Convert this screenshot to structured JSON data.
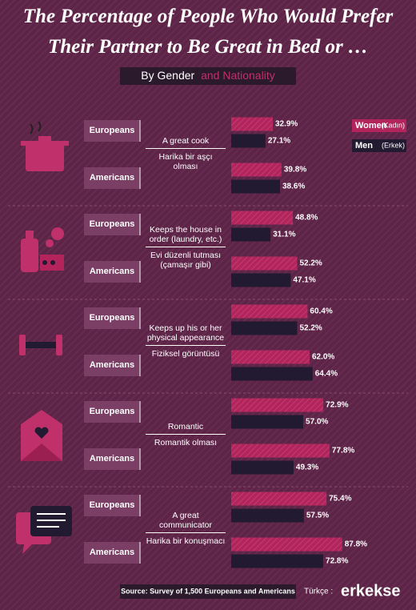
{
  "chart_data": {
    "type": "bar",
    "orientation": "horizontal",
    "title": "The Percentage of People Who Would Prefer Their Partner to Be Great in Bed or …",
    "subtitle_parts": [
      "By Gender",
      "and Nationality"
    ],
    "series": [
      {
        "name": "Women",
        "name_tr": "(Kadın)",
        "color": "#b3245d"
      },
      {
        "name": "Men",
        "name_tr": "(Erkek)",
        "color": "#211a30"
      }
    ],
    "xlim": [
      0,
      100
    ],
    "groups": [
      {
        "label_en": "A great cook",
        "label_tr": "Harika bir aşçı olması",
        "rows": [
          {
            "name": "Europeans",
            "values": [
              32.9,
              27.1
            ],
            "value_labels": [
              "32.9%",
              "27.1%"
            ]
          },
          {
            "name": "Americans",
            "values": [
              39.8,
              38.6
            ],
            "value_labels": [
              "39.8%",
              "38.6%"
            ]
          }
        ]
      },
      {
        "label_en": "Keeps the house in order (laundry, etc.)",
        "label_tr": "Evi düzenli tutması (çamaşır gibi)",
        "rows": [
          {
            "name": "Europeans",
            "values": [
              48.8,
              31.1
            ],
            "value_labels": [
              "48.8%",
              "31.1%"
            ]
          },
          {
            "name": "Americans",
            "values": [
              52.2,
              47.1
            ],
            "value_labels": [
              "52.2%",
              "47.1%"
            ]
          }
        ]
      },
      {
        "label_en": "Keeps up his or her physical appearance",
        "label_tr": "Fiziksel görüntüsü",
        "rows": [
          {
            "name": "Europeans",
            "values": [
              60.4,
              52.2
            ],
            "value_labels": [
              "60.4%",
              "52.2%"
            ]
          },
          {
            "name": "Americans",
            "values": [
              62.0,
              64.4
            ],
            "value_labels": [
              "62.0%",
              "64.4%"
            ]
          }
        ]
      },
      {
        "label_en": "Romantic",
        "label_tr": "Romantik olması",
        "rows": [
          {
            "name": "Europeans",
            "values": [
              72.9,
              57.0
            ],
            "value_labels": [
              "72.9%",
              "57.0%"
            ]
          },
          {
            "name": "Americans",
            "values": [
              77.8,
              49.3
            ],
            "value_labels": [
              "77.8%",
              "49.3%"
            ]
          }
        ]
      },
      {
        "label_en": "A great communicator",
        "label_tr": "Harika bir konuşmacı",
        "rows": [
          {
            "name": "Europeans",
            "values": [
              75.4,
              57.5
            ],
            "value_labels": [
              "75.4%",
              "57.5%"
            ]
          },
          {
            "name": "Americans",
            "values": [
              87.8,
              72.8
            ],
            "value_labels": [
              "87.8%",
              "72.8%"
            ]
          }
        ]
      }
    ],
    "source": "Source: Survey of 1,500 Europeans and Americans",
    "footer_label": "Türkçe :",
    "footer_brand": "erkekse"
  }
}
